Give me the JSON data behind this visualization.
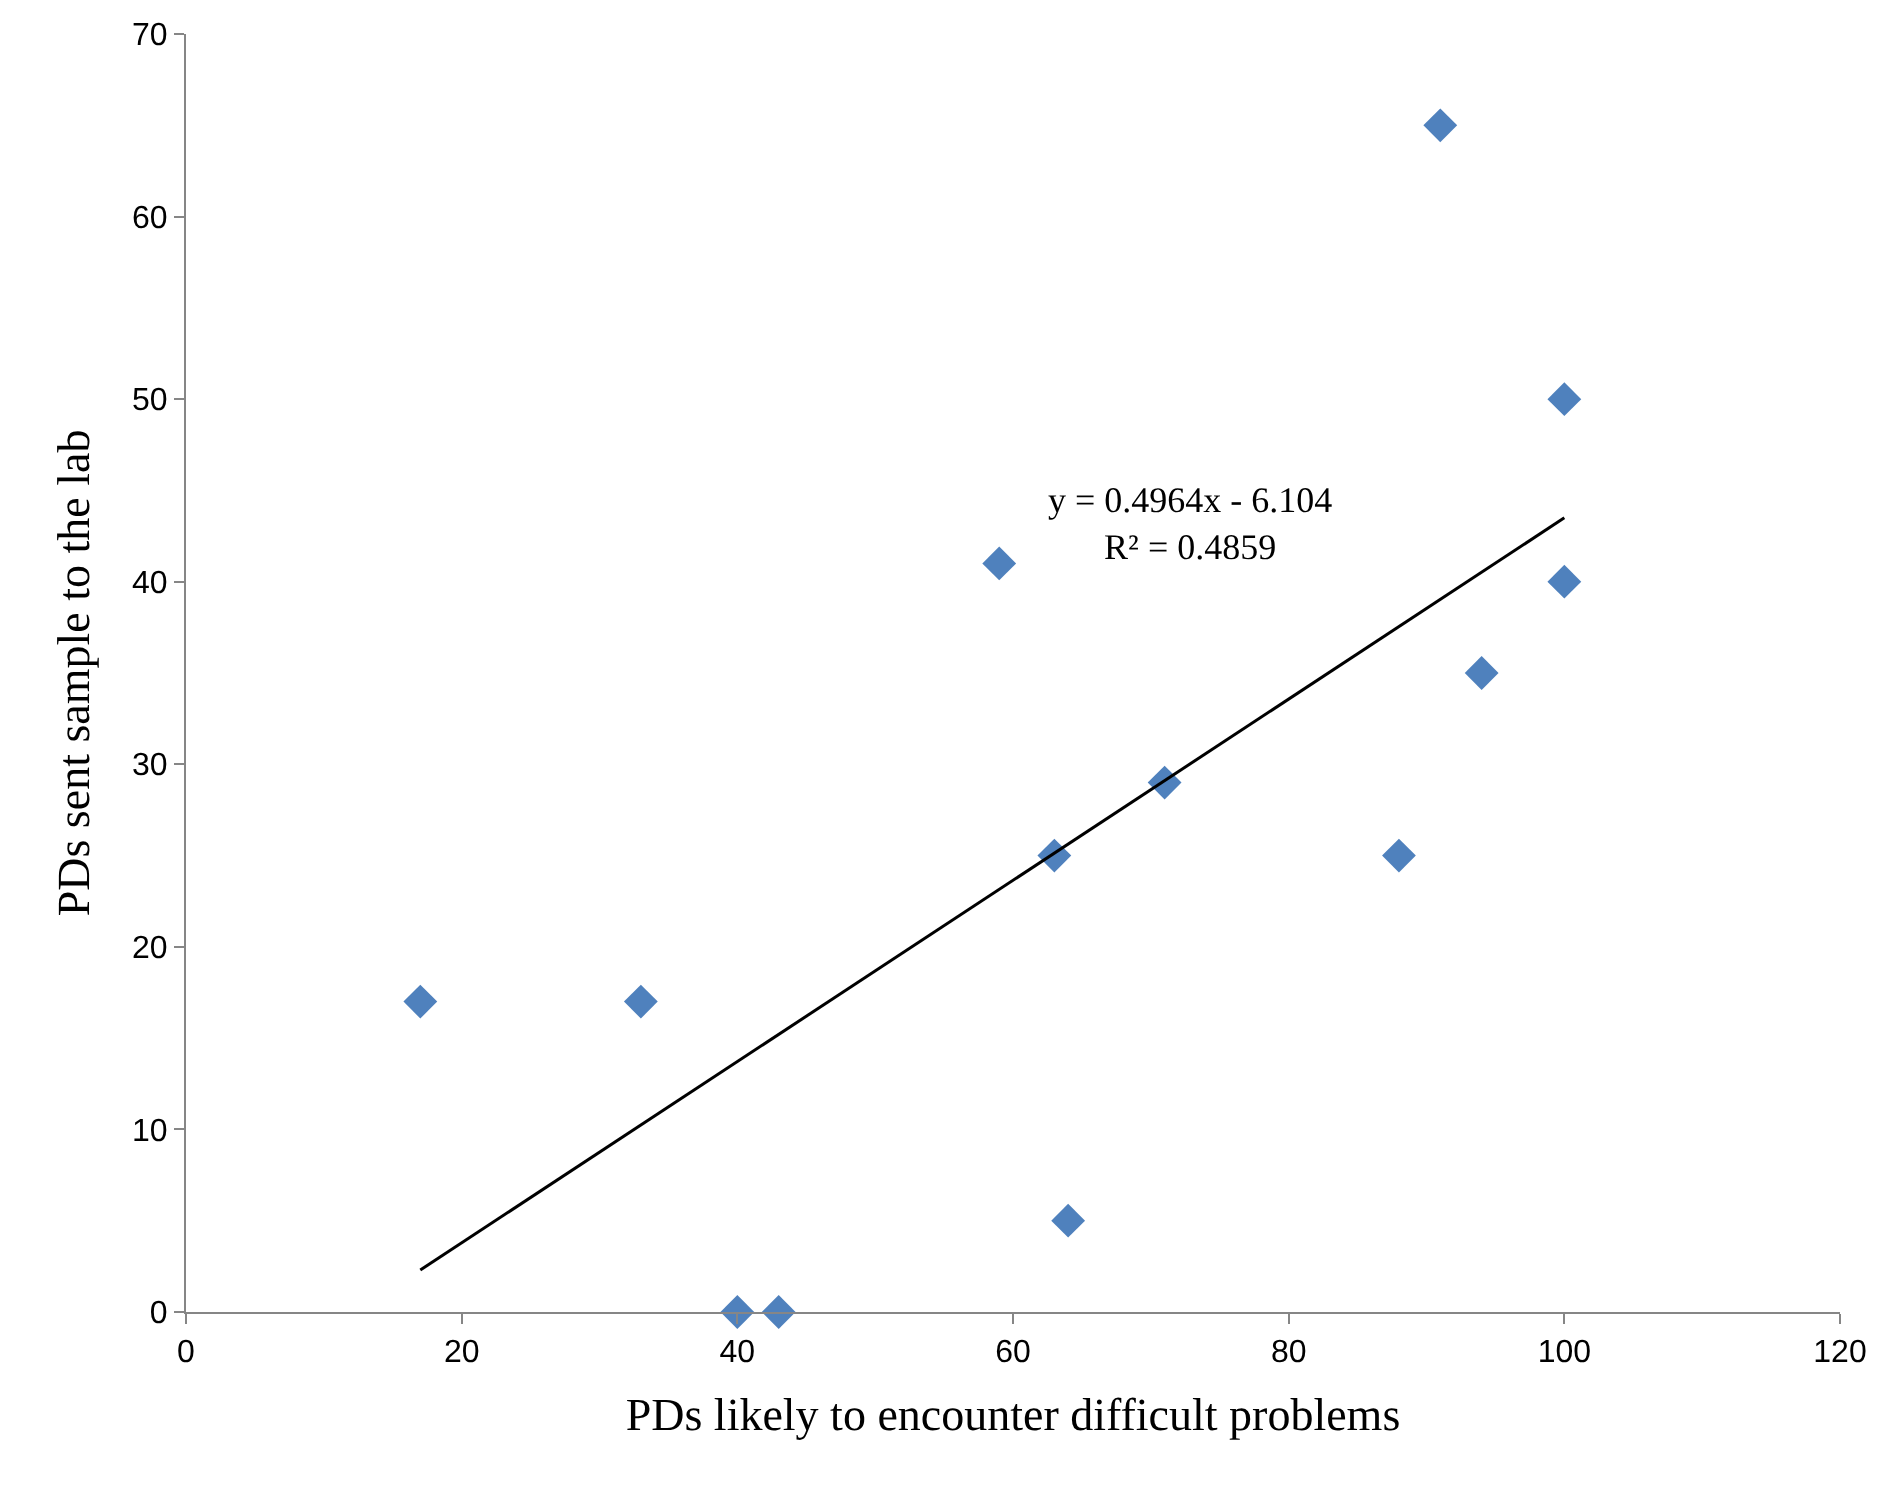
{
  "chart_data": {
    "type": "scatter",
    "xlabel": "PDs likely to encounter difficult problems",
    "ylabel": "PDs sent sample to the lab",
    "xlim": [
      0,
      120
    ],
    "xticks": [
      0,
      20,
      40,
      60,
      80,
      100,
      120
    ],
    "ylim": [
      0,
      70
    ],
    "yticks": [
      0,
      10,
      20,
      30,
      40,
      50,
      60,
      70
    ],
    "marker": "diamond",
    "series": [
      {
        "color": "#4f81bd",
        "x": [
          17,
          33,
          40,
          43,
          59,
          63,
          64,
          71,
          88,
          91,
          94,
          100,
          100
        ],
        "values": [
          17,
          17,
          0,
          0,
          41,
          25,
          5,
          29,
          25,
          65,
          35,
          50,
          40
        ]
      },
      {
        "type": "line",
        "color": "#000000",
        "marker": "none",
        "x": [
          17,
          100
        ],
        "values": [
          2.3,
          43.5
        ]
      }
    ],
    "annotations": [
      "y = 0.4964x - 6.104\nR² = 0.4859"
    ]
  }
}
